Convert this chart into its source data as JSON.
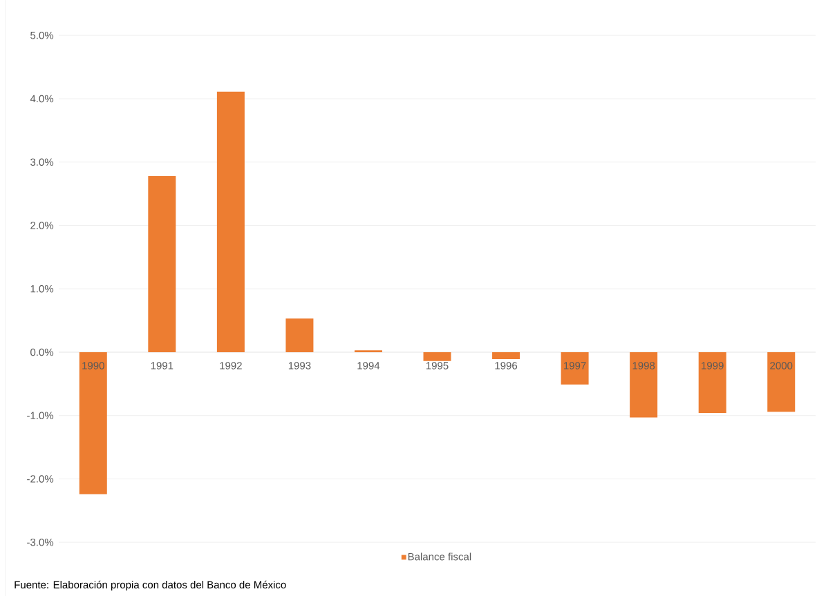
{
  "chart_data": {
    "type": "bar",
    "categories": [
      "1990",
      "1991",
      "1992",
      "1993",
      "1994",
      "1995",
      "1996",
      "1997",
      "1998",
      "1999",
      "2000"
    ],
    "series": [
      {
        "name": "Balance fiscal",
        "color": "#ed7d31",
        "values": [
          -2.24,
          2.78,
          4.11,
          0.53,
          0.03,
          -0.14,
          -0.11,
          -0.51,
          -1.03,
          -0.96,
          -0.94
        ]
      }
    ],
    "ylim": [
      -3,
      5
    ],
    "yticks": [
      {
        "value": -3,
        "label": "-3.0%"
      },
      {
        "value": -2,
        "label": "-2.0%"
      },
      {
        "value": -1,
        "label": "-1.0%"
      },
      {
        "value": 0,
        "label": "0.0%"
      },
      {
        "value": 1,
        "label": "1.0%"
      },
      {
        "value": 2,
        "label": "2.0%"
      },
      {
        "value": 3,
        "label": "3.0%"
      },
      {
        "value": 4,
        "label": "4.0%"
      },
      {
        "value": 5,
        "label": "5.0%"
      }
    ],
    "grid": "y",
    "legend": "bottom",
    "annotations": [
      "Fuente: Elaboración propia con datos del Banco de México"
    ]
  }
}
